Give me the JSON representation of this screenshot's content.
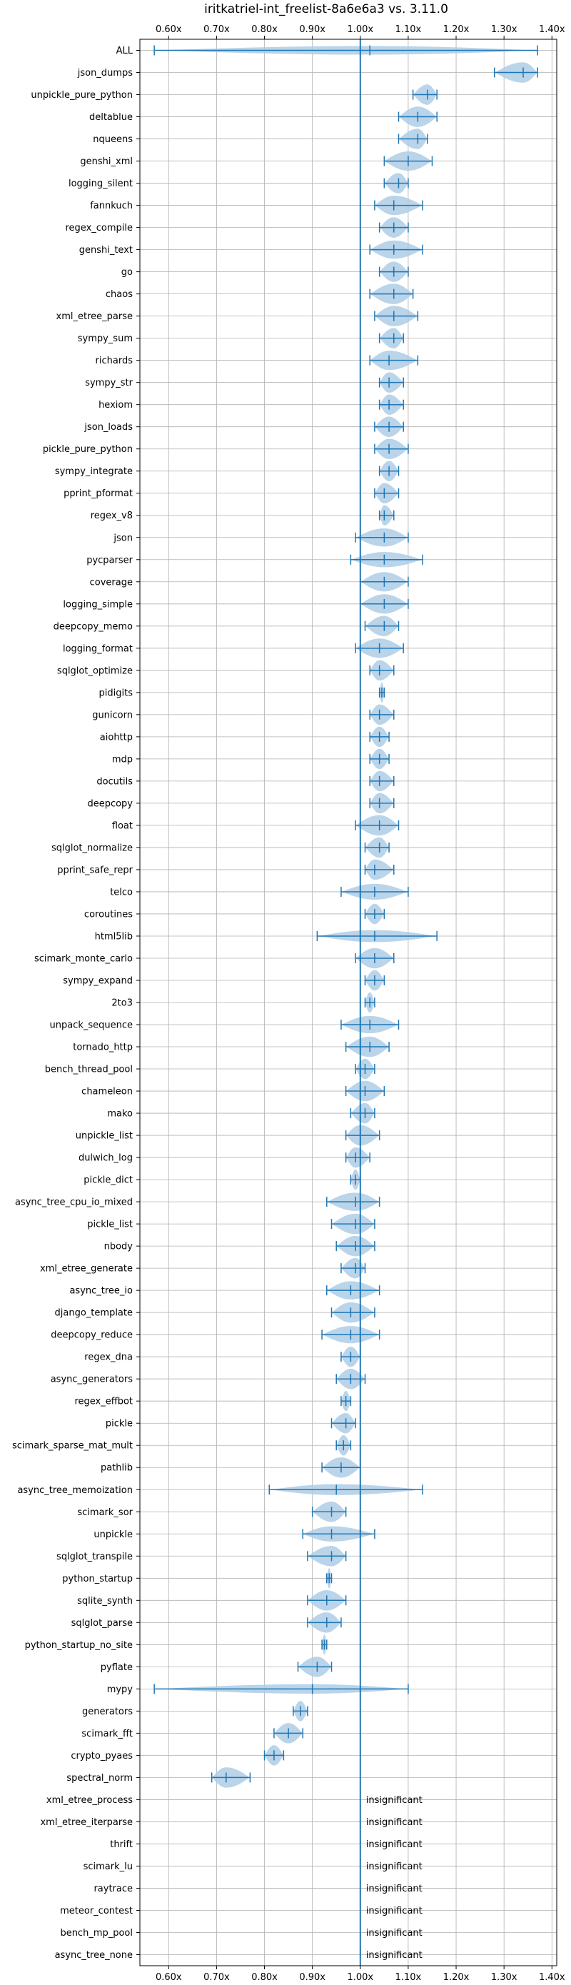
{
  "chart_data": {
    "type": "violin",
    "title": "iritkatriel-int_freelist-8a6e6a3 vs. 3.11.0",
    "xlabel": "",
    "ylabel": "",
    "xlim": [
      0.54,
      1.41
    ],
    "xticks": [
      0.6,
      0.7,
      0.8,
      0.9,
      1.0,
      1.1,
      1.2,
      1.3,
      1.4
    ],
    "xtick_labels": [
      "0.60x",
      "0.70x",
      "0.80x",
      "0.90x",
      "1.00x",
      "1.10x",
      "1.20x",
      "1.30x",
      "1.40x"
    ],
    "reference_line": 1.0,
    "grid": true,
    "colors": {
      "violin": "#aecde6",
      "line": "#1f77b4",
      "grid": "#b0b0b0"
    },
    "insignificant_label": "insignificant",
    "benchmarks": [
      {
        "name": "ALL",
        "min": 0.57,
        "max": 1.37,
        "median": 1.02
      },
      {
        "name": "json_dumps",
        "min": 1.28,
        "max": 1.37,
        "median": 1.34
      },
      {
        "name": "unpickle_pure_python",
        "min": 1.11,
        "max": 1.16,
        "median": 1.14
      },
      {
        "name": "deltablue",
        "min": 1.08,
        "max": 1.16,
        "median": 1.12
      },
      {
        "name": "nqueens",
        "min": 1.08,
        "max": 1.14,
        "median": 1.12
      },
      {
        "name": "genshi_xml",
        "min": 1.05,
        "max": 1.15,
        "median": 1.1
      },
      {
        "name": "logging_silent",
        "min": 1.05,
        "max": 1.1,
        "median": 1.08
      },
      {
        "name": "fannkuch",
        "min": 1.03,
        "max": 1.13,
        "median": 1.07
      },
      {
        "name": "regex_compile",
        "min": 1.04,
        "max": 1.1,
        "median": 1.07
      },
      {
        "name": "genshi_text",
        "min": 1.02,
        "max": 1.13,
        "median": 1.07
      },
      {
        "name": "go",
        "min": 1.04,
        "max": 1.1,
        "median": 1.07
      },
      {
        "name": "chaos",
        "min": 1.02,
        "max": 1.11,
        "median": 1.07
      },
      {
        "name": "xml_etree_parse",
        "min": 1.03,
        "max": 1.12,
        "median": 1.07
      },
      {
        "name": "sympy_sum",
        "min": 1.04,
        "max": 1.09,
        "median": 1.07
      },
      {
        "name": "richards",
        "min": 1.02,
        "max": 1.12,
        "median": 1.06
      },
      {
        "name": "sympy_str",
        "min": 1.04,
        "max": 1.09,
        "median": 1.06
      },
      {
        "name": "hexiom",
        "min": 1.04,
        "max": 1.09,
        "median": 1.06
      },
      {
        "name": "json_loads",
        "min": 1.03,
        "max": 1.09,
        "median": 1.06
      },
      {
        "name": "pickle_pure_python",
        "min": 1.03,
        "max": 1.1,
        "median": 1.06
      },
      {
        "name": "sympy_integrate",
        "min": 1.04,
        "max": 1.08,
        "median": 1.06
      },
      {
        "name": "pprint_pformat",
        "min": 1.03,
        "max": 1.08,
        "median": 1.05
      },
      {
        "name": "regex_v8",
        "min": 1.04,
        "max": 1.07,
        "median": 1.05
      },
      {
        "name": "json",
        "min": 0.99,
        "max": 1.1,
        "median": 1.05
      },
      {
        "name": "pycparser",
        "min": 0.98,
        "max": 1.13,
        "median": 1.05
      },
      {
        "name": "coverage",
        "min": 1.0,
        "max": 1.1,
        "median": 1.05
      },
      {
        "name": "logging_simple",
        "min": 1.0,
        "max": 1.1,
        "median": 1.05
      },
      {
        "name": "deepcopy_memo",
        "min": 1.01,
        "max": 1.08,
        "median": 1.05
      },
      {
        "name": "logging_format",
        "min": 0.99,
        "max": 1.09,
        "median": 1.04
      },
      {
        "name": "sqlglot_optimize",
        "min": 1.02,
        "max": 1.07,
        "median": 1.04
      },
      {
        "name": "pidigits",
        "min": 1.04,
        "max": 1.05,
        "median": 1.045
      },
      {
        "name": "gunicorn",
        "min": 1.02,
        "max": 1.07,
        "median": 1.04
      },
      {
        "name": "aiohttp",
        "min": 1.02,
        "max": 1.06,
        "median": 1.04
      },
      {
        "name": "mdp",
        "min": 1.02,
        "max": 1.06,
        "median": 1.04
      },
      {
        "name": "docutils",
        "min": 1.02,
        "max": 1.07,
        "median": 1.04
      },
      {
        "name": "deepcopy",
        "min": 1.02,
        "max": 1.07,
        "median": 1.04
      },
      {
        "name": "float",
        "min": 0.99,
        "max": 1.08,
        "median": 1.04
      },
      {
        "name": "sqlglot_normalize",
        "min": 1.01,
        "max": 1.06,
        "median": 1.04
      },
      {
        "name": "pprint_safe_repr",
        "min": 1.01,
        "max": 1.07,
        "median": 1.03
      },
      {
        "name": "telco",
        "min": 0.96,
        "max": 1.1,
        "median": 1.03
      },
      {
        "name": "coroutines",
        "min": 1.01,
        "max": 1.05,
        "median": 1.03
      },
      {
        "name": "html5lib",
        "min": 0.91,
        "max": 1.16,
        "median": 1.03
      },
      {
        "name": "scimark_monte_carlo",
        "min": 0.99,
        "max": 1.07,
        "median": 1.03
      },
      {
        "name": "sympy_expand",
        "min": 1.01,
        "max": 1.05,
        "median": 1.03
      },
      {
        "name": "2to3",
        "min": 1.01,
        "max": 1.03,
        "median": 1.02
      },
      {
        "name": "unpack_sequence",
        "min": 0.96,
        "max": 1.08,
        "median": 1.02
      },
      {
        "name": "tornado_http",
        "min": 0.97,
        "max": 1.06,
        "median": 1.02
      },
      {
        "name": "bench_thread_pool",
        "min": 0.99,
        "max": 1.03,
        "median": 1.01
      },
      {
        "name": "chameleon",
        "min": 0.97,
        "max": 1.05,
        "median": 1.01
      },
      {
        "name": "mako",
        "min": 0.98,
        "max": 1.03,
        "median": 1.01
      },
      {
        "name": "unpickle_list",
        "min": 0.97,
        "max": 1.04,
        "median": 1.0
      },
      {
        "name": "dulwich_log",
        "min": 0.97,
        "max": 1.02,
        "median": 0.99
      },
      {
        "name": "pickle_dict",
        "min": 0.98,
        "max": 1.0,
        "median": 0.99
      },
      {
        "name": "async_tree_cpu_io_mixed",
        "min": 0.93,
        "max": 1.04,
        "median": 0.99
      },
      {
        "name": "pickle_list",
        "min": 0.94,
        "max": 1.03,
        "median": 0.99
      },
      {
        "name": "nbody",
        "min": 0.95,
        "max": 1.03,
        "median": 0.99
      },
      {
        "name": "xml_etree_generate",
        "min": 0.96,
        "max": 1.01,
        "median": 0.99
      },
      {
        "name": "async_tree_io",
        "min": 0.93,
        "max": 1.04,
        "median": 0.98
      },
      {
        "name": "django_template",
        "min": 0.94,
        "max": 1.03,
        "median": 0.98
      },
      {
        "name": "deepcopy_reduce",
        "min": 0.92,
        "max": 1.04,
        "median": 0.98
      },
      {
        "name": "regex_dna",
        "min": 0.96,
        "max": 1.0,
        "median": 0.98
      },
      {
        "name": "async_generators",
        "min": 0.95,
        "max": 1.01,
        "median": 0.98
      },
      {
        "name": "regex_effbot",
        "min": 0.96,
        "max": 0.98,
        "median": 0.97
      },
      {
        "name": "pickle",
        "min": 0.94,
        "max": 0.99,
        "median": 0.97
      },
      {
        "name": "scimark_sparse_mat_mult",
        "min": 0.95,
        "max": 0.98,
        "median": 0.965
      },
      {
        "name": "pathlib",
        "min": 0.92,
        "max": 1.0,
        "median": 0.96
      },
      {
        "name": "async_tree_memoization",
        "min": 0.81,
        "max": 1.13,
        "median": 0.95
      },
      {
        "name": "scimark_sor",
        "min": 0.9,
        "max": 0.97,
        "median": 0.94
      },
      {
        "name": "unpickle",
        "min": 0.88,
        "max": 1.03,
        "median": 0.94
      },
      {
        "name": "sqlglot_transpile",
        "min": 0.89,
        "max": 0.97,
        "median": 0.94
      },
      {
        "name": "python_startup",
        "min": 0.93,
        "max": 0.94,
        "median": 0.935
      },
      {
        "name": "sqlite_synth",
        "min": 0.89,
        "max": 0.97,
        "median": 0.93
      },
      {
        "name": "sqlglot_parse",
        "min": 0.89,
        "max": 0.96,
        "median": 0.93
      },
      {
        "name": "python_startup_no_site",
        "min": 0.92,
        "max": 0.93,
        "median": 0.925
      },
      {
        "name": "pyflate",
        "min": 0.87,
        "max": 0.94,
        "median": 0.91
      },
      {
        "name": "mypy",
        "min": 0.57,
        "max": 1.1,
        "median": 0.9
      },
      {
        "name": "generators",
        "min": 0.86,
        "max": 0.89,
        "median": 0.875
      },
      {
        "name": "scimark_fft",
        "min": 0.82,
        "max": 0.88,
        "median": 0.85
      },
      {
        "name": "crypto_pyaes",
        "min": 0.8,
        "max": 0.84,
        "median": 0.82
      },
      {
        "name": "spectral_norm",
        "min": 0.69,
        "max": 0.77,
        "median": 0.72
      },
      {
        "name": "xml_etree_process",
        "insignificant": true
      },
      {
        "name": "xml_etree_iterparse",
        "insignificant": true
      },
      {
        "name": "thrift",
        "insignificant": true
      },
      {
        "name": "scimark_lu",
        "insignificant": true
      },
      {
        "name": "raytrace",
        "insignificant": true
      },
      {
        "name": "meteor_contest",
        "insignificant": true
      },
      {
        "name": "bench_mp_pool",
        "insignificant": true
      },
      {
        "name": "async_tree_none",
        "insignificant": true
      }
    ]
  }
}
